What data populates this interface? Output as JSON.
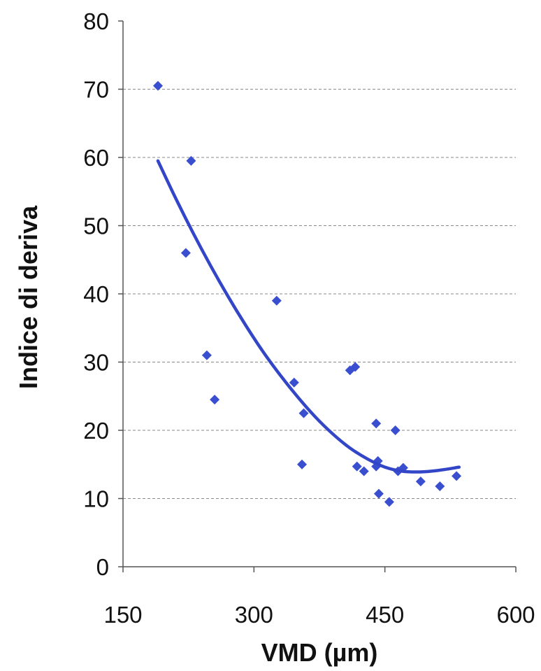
{
  "chart_data": {
    "type": "scatter",
    "xlabel": "VMD (µm)",
    "ylabel": "Indice di deriva",
    "xlim": [
      150,
      600
    ],
    "ylim": [
      0,
      80
    ],
    "x_ticks": [
      "150",
      "300",
      "450",
      "600"
    ],
    "y_ticks": [
      "0",
      "10",
      "20",
      "30",
      "40",
      "50",
      "60",
      "70",
      "80"
    ],
    "grid": "horizontal dashed",
    "legend": "none",
    "colors": {
      "points": "#3a4fd0",
      "trend": "#3346c8",
      "grid": "#8a8a8a",
      "axis": "#555555"
    },
    "series": [
      {
        "marker": "diamond",
        "points": [
          [
            190,
            70.5
          ],
          [
            228,
            59.5
          ],
          [
            222,
            46
          ],
          [
            246,
            31
          ],
          [
            255,
            24.5
          ],
          [
            326,
            39
          ],
          [
            346,
            27
          ],
          [
            357,
            22.5
          ],
          [
            355,
            15
          ],
          [
            410,
            28.8
          ],
          [
            416,
            29.3
          ],
          [
            418,
            14.7
          ],
          [
            426,
            14
          ],
          [
            440,
            21
          ],
          [
            440,
            14.7
          ],
          [
            442,
            15.5
          ],
          [
            443,
            10.7
          ],
          [
            455,
            9.5
          ],
          [
            462,
            20
          ],
          [
            465,
            14
          ],
          [
            471,
            14.5
          ],
          [
            491,
            12.5
          ],
          [
            513,
            11.8
          ],
          [
            532,
            13.3
          ]
        ]
      }
    ],
    "trendline": {
      "type": "polynomial",
      "x_range": [
        190,
        535
      ],
      "points": [
        [
          190,
          59.5
        ],
        [
          210,
          54.1
        ],
        [
          230,
          49.0
        ],
        [
          250,
          44.2
        ],
        [
          270,
          39.7
        ],
        [
          290,
          35.5
        ],
        [
          310,
          31.6
        ],
        [
          330,
          28.1
        ],
        [
          350,
          24.9
        ],
        [
          370,
          22.0
        ],
        [
          390,
          19.5
        ],
        [
          410,
          17.4
        ],
        [
          430,
          15.8
        ],
        [
          450,
          14.6
        ],
        [
          470,
          14.0
        ],
        [
          490,
          13.9
        ],
        [
          510,
          14.1
        ],
        [
          535,
          14.6
        ]
      ]
    }
  }
}
